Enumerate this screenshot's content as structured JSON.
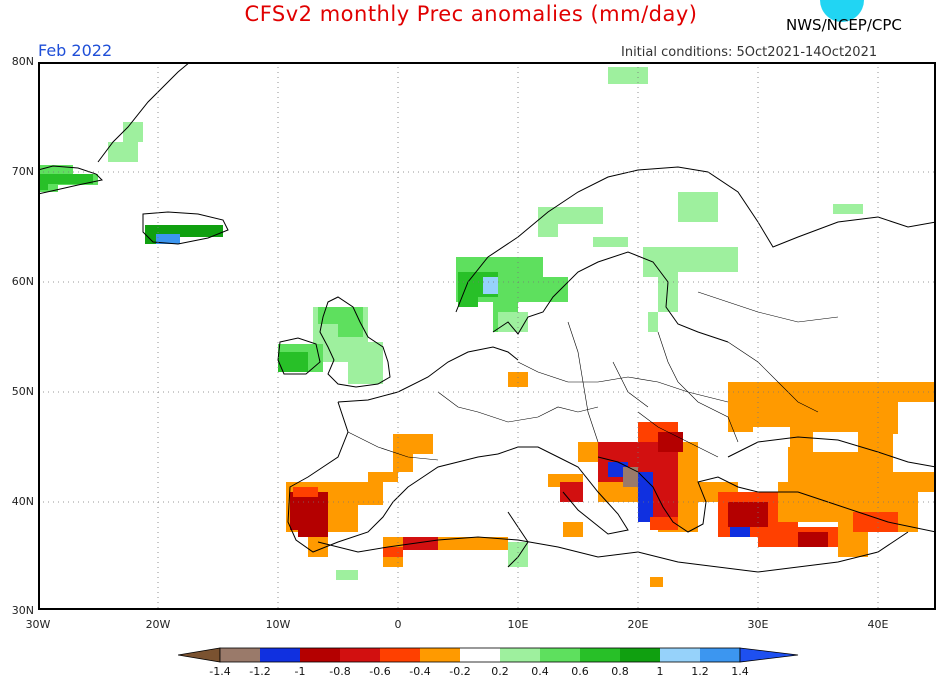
{
  "title": "CFSv2 monthly Prec anomalies (mm/day)",
  "month": "Feb 2022",
  "initial_conditions": "Initial conditions: 5Oct2021-14Oct2021",
  "agency": "NWS/NCEP/CPC",
  "lat_labels": [
    "80N",
    "70N",
    "60N",
    "50N",
    "40N",
    "30N"
  ],
  "lon_labels": [
    "30W",
    "20W",
    "10W",
    "0",
    "10E",
    "20E",
    "30E",
    "40E"
  ],
  "colorbar_labels": [
    "-1.4",
    "-1.2",
    "-1",
    "-0.8",
    "-0.6",
    "-0.4",
    "-0.2",
    "0.2",
    "0.4",
    "0.6",
    "0.8",
    "1",
    "1.2",
    "1.4"
  ],
  "colors": {
    "below_-1.4": "#7a5230",
    "-1.4_-1.2": "#9a7a6a",
    "-1.2_-1": "#1030e0",
    "-1_-0.8": "#b40000",
    "-0.8_-0.6": "#d21010",
    "-0.6_-0.4": "#ff4000",
    "-0.4_-0.2": "#ff9a00",
    "-0.2_0.2": "#ffffff",
    "0.2_0.4": "#9ef09e",
    "0.4_0.6": "#5ee05e",
    "0.6_0.8": "#28c028",
    "0.8_1": "#10a010",
    "1_1.2": "#96d2fa",
    "1.2_1.4": "#3c96f0",
    "above_1.4": "#1e50f0"
  }
}
